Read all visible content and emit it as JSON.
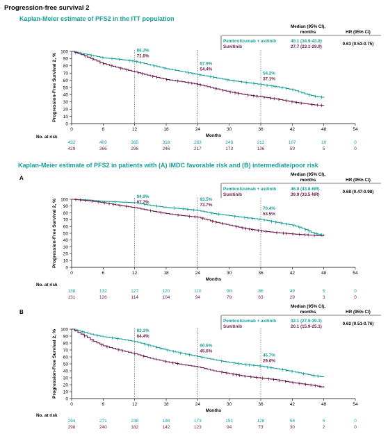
{
  "page": {
    "title": "Progression-free survival 2",
    "section_itt_title": "Kaplan-Meier estimate of PFS2 in the ITT population",
    "section_sub_title": "Kaplan-Meier estimate of PFS2 in patients with (A) IMDC favorable risk and (B) intermediate/poor risk"
  },
  "colors": {
    "pembro": "#14a09a",
    "suni": "#6b1b4c"
  },
  "chart_data": [
    {
      "type": "line",
      "title": "",
      "panel_label": "",
      "xlabel": "Months",
      "ylabel": "Progression-Free Survival 2, %",
      "xlim": [
        0,
        54
      ],
      "ylim": [
        0,
        100
      ],
      "xticks": [
        0,
        6,
        12,
        18,
        24,
        30,
        36,
        42,
        48,
        54
      ],
      "yticks": [
        0,
        10,
        20,
        30,
        40,
        50,
        60,
        70,
        80,
        90,
        100
      ],
      "table": {
        "median_header": "Median (95% CI), months",
        "hr_header": "HR (95% CI)",
        "rows": [
          {
            "name": "Pembrolizumab + axitinib",
            "median": "40.1 (34.9-43.8)"
          },
          {
            "name": "Sunitinib",
            "median": "27.7 (23.1-29.9)"
          }
        ],
        "hr": "0.63 (0.53-0.75)"
      },
      "annotations": [
        {
          "x": 12,
          "pembro": "86.2%",
          "suni": "71.6%"
        },
        {
          "x": 24,
          "pembro": "67.9%",
          "suni": "54.4%"
        },
        {
          "x": 36,
          "pembro": "54.2%",
          "suni": "37.1%"
        }
      ],
      "series": [
        {
          "name": "Pembrolizumab + axitinib",
          "key": "pembro",
          "x": [
            0,
            2,
            4,
            6,
            9,
            12,
            15,
            18,
            21,
            24,
            27,
            30,
            33,
            36,
            39,
            42,
            44,
            46,
            48
          ],
          "y": [
            100,
            97,
            94,
            91,
            89,
            86.2,
            81,
            76,
            72,
            67.9,
            64,
            60,
            57,
            54.2,
            51,
            47,
            42,
            38,
            36
          ]
        },
        {
          "name": "Sunitinib",
          "key": "suni",
          "x": [
            0,
            2,
            4,
            6,
            9,
            12,
            15,
            18,
            21,
            24,
            27,
            30,
            33,
            36,
            39,
            42,
            44,
            46,
            48
          ],
          "y": [
            100,
            95,
            89,
            83,
            77,
            71.6,
            66,
            61,
            58,
            54.4,
            49,
            44,
            40,
            37.1,
            34,
            30,
            28,
            26,
            25
          ]
        }
      ],
      "at_risk": {
        "label": "No. at risk",
        "pembro": [
          "432",
          "403",
          "385",
          "318",
          "283",
          "249",
          "212",
          "107",
          "10",
          "0"
        ],
        "suni": [
          "429",
          "366",
          "296",
          "246",
          "217",
          "173",
          "136",
          "59",
          "5",
          "0"
        ]
      }
    },
    {
      "type": "line",
      "title": "",
      "panel_label": "A",
      "xlabel": "Months",
      "ylabel": "Progression-Free Survival 2, %",
      "xlim": [
        0,
        54
      ],
      "ylim": [
        0,
        100
      ],
      "xticks": [
        0,
        6,
        12,
        18,
        24,
        30,
        36,
        42,
        48,
        54
      ],
      "yticks": [
        0,
        10,
        20,
        30,
        40,
        50,
        60,
        70,
        80,
        90,
        100
      ],
      "table": {
        "median_header": "Median (95% CI), months",
        "hr_header": "HR (95% CI)",
        "rows": [
          {
            "name": "Pembrolizumab + axitinib",
            "median": "46.0 (43.8-NR)"
          },
          {
            "name": "Sunitinib",
            "median": "39.9 (33.5-NR)"
          }
        ],
        "hr": "0.68 (0.47-0.98)"
      },
      "annotations": [
        {
          "x": 12,
          "pembro": "94.9%",
          "suni": "87.7%"
        },
        {
          "x": 24,
          "pembro": "83.5%",
          "suni": "73.7%"
        },
        {
          "x": 36,
          "pembro": "70.4%",
          "suni": "53.5%"
        }
      ],
      "series": [
        {
          "name": "Pembrolizumab + axitinib",
          "key": "pembro",
          "x": [
            0,
            3,
            6,
            9,
            12,
            15,
            18,
            21,
            24,
            27,
            30,
            33,
            36,
            39,
            42,
            44,
            46,
            48
          ],
          "y": [
            100,
            99,
            97,
            96,
            94.9,
            91,
            88,
            86,
            83.5,
            79,
            76,
            73,
            70.4,
            66,
            62,
            57,
            50,
            47
          ]
        },
        {
          "name": "Sunitinib",
          "key": "suni",
          "x": [
            0,
            3,
            6,
            9,
            12,
            15,
            18,
            21,
            24,
            27,
            30,
            33,
            36,
            39,
            42,
            44,
            46,
            48
          ],
          "y": [
            100,
            98,
            95,
            91,
            87.7,
            83,
            79,
            76,
            73.7,
            67,
            62,
            57,
            53.5,
            51,
            49,
            48,
            47,
            46
          ]
        }
      ],
      "at_risk": {
        "label": "No. at risk",
        "pembro": [
          "138",
          "132",
          "127",
          "120",
          "110",
          "98",
          "86",
          "49",
          "5",
          "0"
        ],
        "suni": [
          "131",
          "126",
          "114",
          "104",
          "94",
          "79",
          "63",
          "29",
          "3",
          "0"
        ]
      }
    },
    {
      "type": "line",
      "title": "",
      "panel_label": "B",
      "xlabel": "Months",
      "ylabel": "Progression-Free Survival 2, %",
      "xlim": [
        0,
        54
      ],
      "ylim": [
        0,
        100
      ],
      "xticks": [
        0,
        6,
        12,
        18,
        24,
        30,
        36,
        42,
        48,
        54
      ],
      "yticks": [
        0,
        10,
        20,
        30,
        40,
        50,
        60,
        70,
        80,
        90,
        100
      ],
      "table": {
        "median_header": "Median (95% CI), months",
        "hr_header": "HR (95% CI)",
        "rows": [
          {
            "name": "Pembrolizumab + axitinib",
            "median": "32.1 (27.9-39.3)"
          },
          {
            "name": "Sunitinib",
            "median": "20.1 (15.9-25.1)"
          }
        ],
        "hr": "0.62 (0.51-0.76)"
      },
      "annotations": [
        {
          "x": 12,
          "pembro": "82.1%",
          "suni": "64.4%"
        },
        {
          "x": 24,
          "pembro": "60.6%",
          "suni": "45.6%"
        },
        {
          "x": 36,
          "pembro": "46.7%",
          "suni": "29.6%"
        }
      ],
      "series": [
        {
          "name": "Pembrolizumab + axitinib",
          "key": "pembro",
          "x": [
            0,
            2,
            4,
            6,
            9,
            12,
            15,
            18,
            21,
            24,
            27,
            30,
            33,
            36,
            39,
            42,
            44,
            46,
            48
          ],
          "y": [
            100,
            96,
            92,
            89,
            86,
            82.1,
            76,
            70,
            65,
            60.6,
            56,
            52,
            49,
            46.7,
            43,
            39,
            36,
            33,
            31
          ]
        },
        {
          "name": "Sunitinib",
          "key": "suni",
          "x": [
            0,
            2,
            4,
            6,
            9,
            12,
            15,
            18,
            21,
            24,
            27,
            30,
            33,
            36,
            39,
            42,
            44,
            46,
            48
          ],
          "y": [
            100,
            92,
            83,
            76,
            70,
            64.4,
            58,
            53,
            49,
            45.6,
            40,
            36,
            32,
            29.6,
            27,
            23,
            21,
            19,
            16
          ]
        }
      ],
      "at_risk": {
        "label": "No. at risk",
        "pembro": [
          "294",
          "271",
          "238",
          "198",
          "173",
          "151",
          "126",
          "58",
          "5",
          "0"
        ],
        "suni": [
          "298",
          "240",
          "182",
          "142",
          "123",
          "94",
          "73",
          "30",
          "2",
          "0"
        ]
      }
    }
  ]
}
